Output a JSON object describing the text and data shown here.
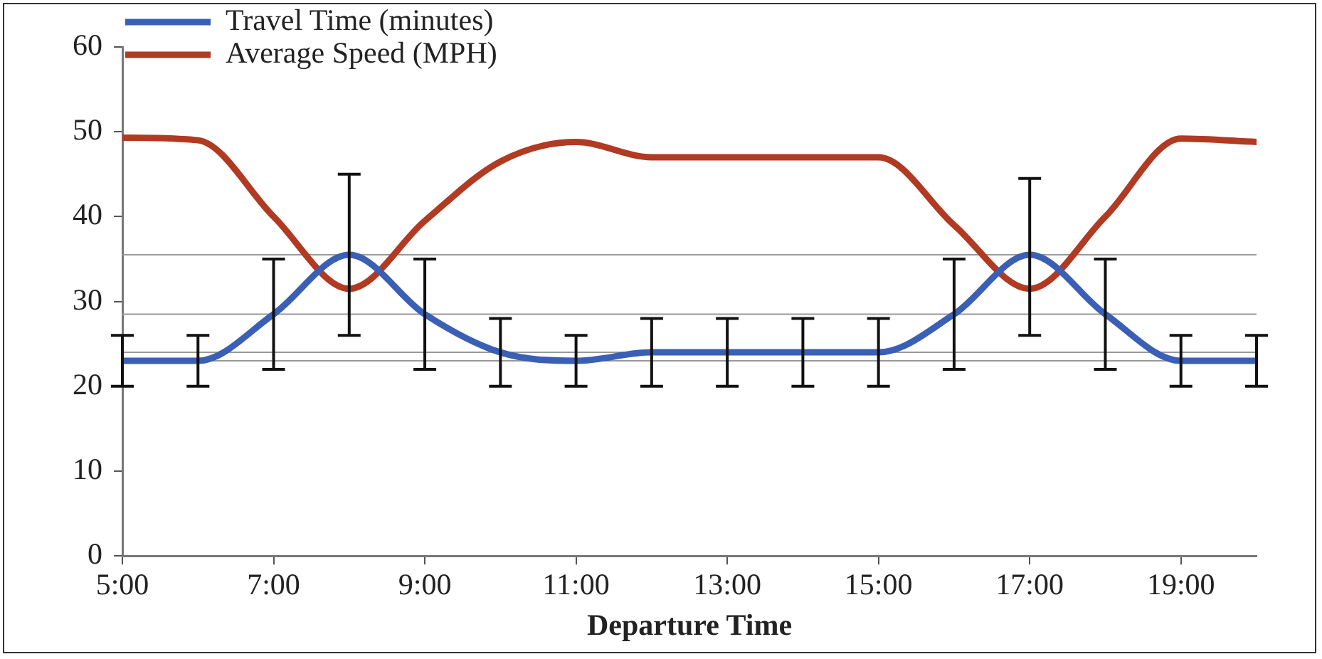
{
  "chart_data": {
    "type": "line",
    "xlabel": "Departure Time",
    "x": [
      5,
      6,
      7,
      8,
      9,
      10,
      11,
      12,
      13,
      14,
      15,
      16,
      17,
      18,
      19,
      20
    ],
    "series": [
      {
        "name": "Travel Time (minutes)",
        "color": "#3a5fb5",
        "values": [
          23,
          23,
          28.5,
          35.5,
          28.5,
          24,
          23,
          24,
          24,
          24,
          24,
          28.5,
          35.5,
          28.5,
          23,
          23
        ],
        "errors": [
          [
            20,
            26
          ],
          [
            20,
            26
          ],
          [
            22,
            35
          ],
          [
            26,
            45
          ],
          [
            22,
            35
          ],
          [
            20,
            28
          ],
          [
            20,
            26
          ],
          [
            20,
            28
          ],
          [
            20,
            28
          ],
          [
            20,
            28
          ],
          [
            20,
            28
          ],
          [
            22,
            35
          ],
          [
            26,
            44.5
          ],
          [
            22,
            35
          ],
          [
            20,
            26
          ],
          [
            20,
            26
          ]
        ]
      },
      {
        "name": "Average Speed (MPH)",
        "color": "#b03a22",
        "values": [
          49.3,
          49,
          40,
          31.5,
          39.5,
          46.5,
          48.8,
          47,
          47,
          47,
          47,
          39,
          31.5,
          40,
          49.2,
          48.8
        ]
      }
    ],
    "xlim": [
      5,
      20
    ],
    "xticks": [
      {
        "value": 5,
        "label": "5:00"
      },
      {
        "value": 7,
        "label": "7:00"
      },
      {
        "value": 9,
        "label": "9:00"
      },
      {
        "value": 11,
        "label": "11:00"
      },
      {
        "value": 13,
        "label": "13:00"
      },
      {
        "value": 15,
        "label": "15:00"
      },
      {
        "value": 17,
        "label": "17:00"
      },
      {
        "value": 19,
        "label": "19:00"
      }
    ],
    "ylim": [
      0,
      60
    ],
    "yticks": [
      0,
      10,
      20,
      30,
      40,
      50,
      60
    ],
    "ref_lines": [
      {
        "axis": "y",
        "value": 35.5,
        "color": "#9a9a9a"
      },
      {
        "axis": "y",
        "value": 28.5,
        "color": "#9a9a9a"
      },
      {
        "axis": "y",
        "value": 24,
        "color": "#9a9a9a"
      },
      {
        "axis": "y",
        "value": 23,
        "color": "#9a9a9a"
      }
    ],
    "legend": "top left",
    "marker": "none",
    "line_style": "solid"
  }
}
